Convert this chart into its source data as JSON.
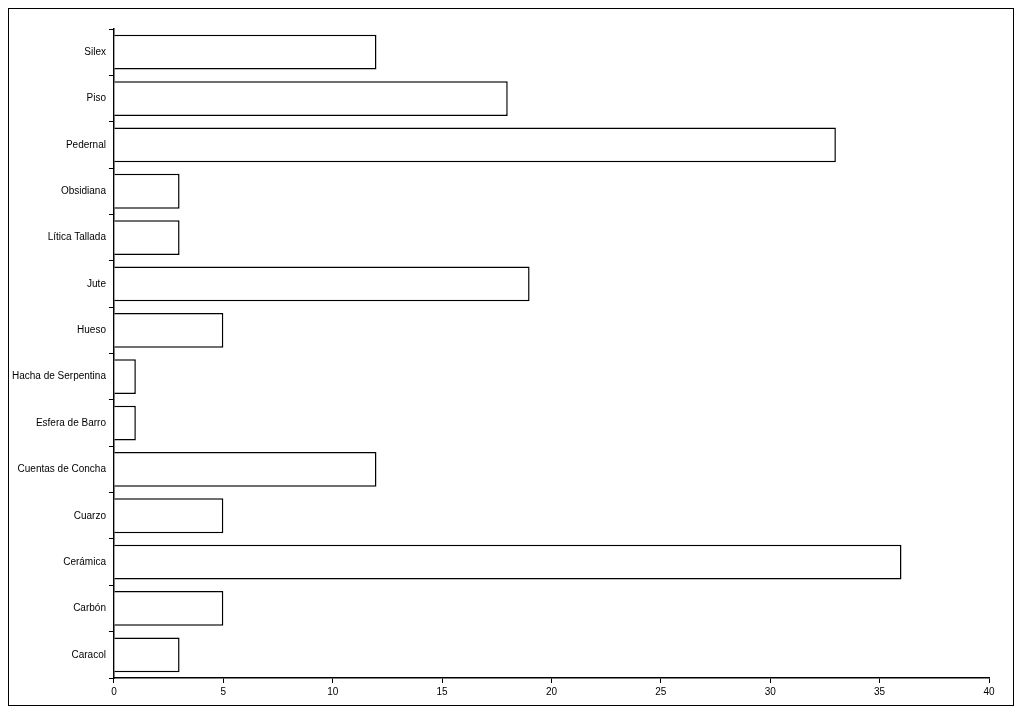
{
  "chart_data": {
    "type": "bar",
    "orientation": "horizontal",
    "categories": [
      "Silex",
      "Piso",
      "Pedernal",
      "Obsidiana",
      "Lítica Tallada",
      "Jute",
      "Hueso",
      "Hacha de Serpentina",
      "Esfera de Barro",
      "Cuentas de Concha",
      "Cuarzo",
      "Cerámica",
      "Carbón",
      "Caracol"
    ],
    "values": [
      12,
      18,
      33,
      3,
      3,
      19,
      5,
      1,
      1,
      12,
      5,
      36,
      5,
      3
    ],
    "color": "#ffffff",
    "xlim": [
      0,
      40
    ],
    "xticks": [
      0,
      5,
      10,
      15,
      20,
      25,
      30,
      35,
      40
    ],
    "grid": false,
    "legend": false
  }
}
